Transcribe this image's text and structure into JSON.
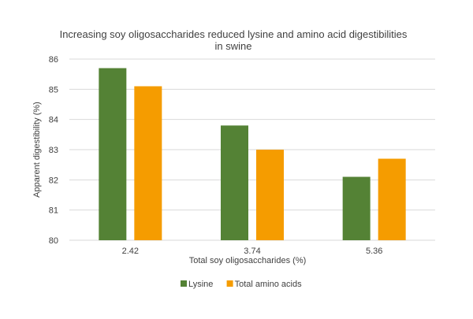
{
  "chart_data": {
    "type": "bar",
    "title_lines": [
      "Increasing soy oligosaccharides reduced lysine and amino acid digestibilities",
      "in swine"
    ],
    "xlabel": "Total soy oligosaccharides (%)",
    "ylabel": "Apparent digestibility (%)",
    "categories": [
      "2.42",
      "3.74",
      "5.36"
    ],
    "series": [
      {
        "name": "Lysine",
        "color": "#548235",
        "values": [
          85.7,
          83.8,
          82.1
        ]
      },
      {
        "name": "Total amino acids",
        "color": "#F59C00",
        "values": [
          85.1,
          83.0,
          82.7
        ]
      }
    ],
    "ylim": [
      80,
      86
    ],
    "yticks": [
      "80",
      "81",
      "82",
      "83",
      "84",
      "85",
      "86"
    ],
    "grid": true,
    "gridline_color": "#d9d9d9",
    "legend_position": "bottom"
  }
}
